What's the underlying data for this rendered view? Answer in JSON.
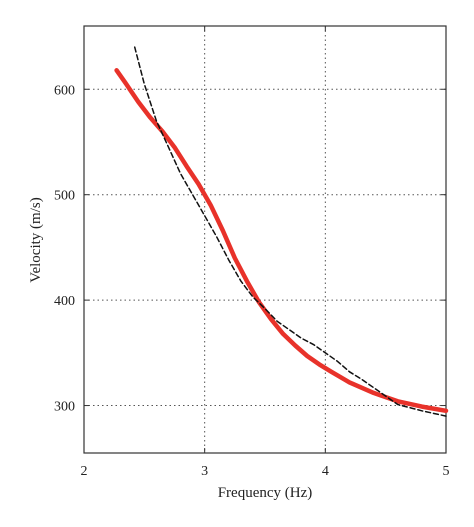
{
  "chart_data": {
    "type": "line",
    "title": "",
    "xlabel": "Frequency (Hz)",
    "ylabel": "Velocity (m/s)",
    "xlim": [
      2,
      5
    ],
    "ylim": [
      255,
      660
    ],
    "xticks": [
      2,
      3,
      4,
      5
    ],
    "yticks": [
      300,
      400,
      500,
      600
    ],
    "xtick_labels": [
      "2",
      "3",
      "4",
      "5"
    ],
    "ytick_labels": [
      "300",
      "400",
      "500",
      "600"
    ],
    "grid": "dotted",
    "series": [
      {
        "style": "solid",
        "color": "#e8322a",
        "x": [
          2.27,
          2.35,
          2.45,
          2.55,
          2.65,
          2.75,
          2.85,
          2.95,
          3.05,
          3.15,
          3.25,
          3.35,
          3.45,
          3.55,
          3.65,
          3.75,
          3.85,
          3.95,
          4.05,
          4.2,
          4.4,
          4.6,
          4.8,
          5.0
        ],
        "y": [
          618,
          605,
          588,
          573,
          560,
          545,
          527,
          510,
          490,
          466,
          440,
          418,
          398,
          382,
          368,
          357,
          347,
          339,
          332,
          322,
          312,
          304,
          299,
          295
        ]
      },
      {
        "style": "dashed",
        "color": "#111111",
        "x": [
          2.42,
          2.5,
          2.6,
          2.7,
          2.8,
          2.9,
          3.0,
          3.1,
          3.2,
          3.3,
          3.4,
          3.5,
          3.6,
          3.7,
          3.8,
          3.9,
          4.0,
          4.1,
          4.2,
          4.3,
          4.45,
          4.6,
          4.8,
          5.0
        ],
        "y": [
          640,
          605,
          570,
          545,
          520,
          500,
          480,
          460,
          438,
          418,
          403,
          392,
          380,
          372,
          364,
          358,
          350,
          342,
          332,
          325,
          313,
          301,
          295,
          290
        ]
      }
    ]
  }
}
